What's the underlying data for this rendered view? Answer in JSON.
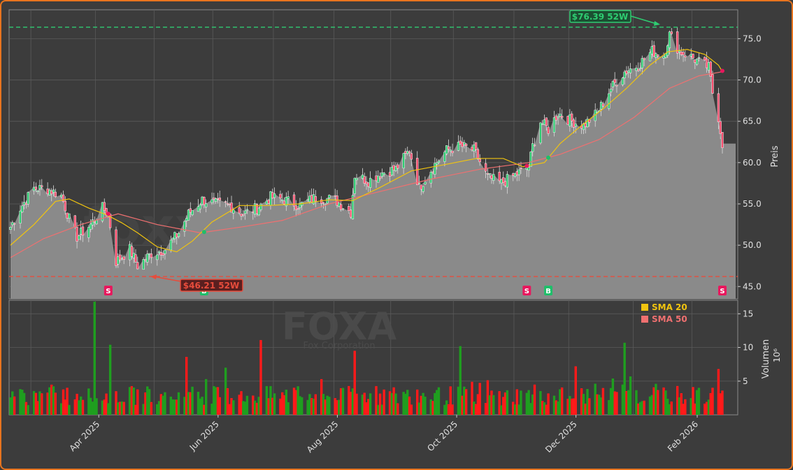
{
  "chart_data": [
    {
      "type": "candlestick",
      "ticker": "FOXA",
      "company": "Fox Corporation",
      "watermark": "foxxsignale.trade",
      "ylabel": "Preis",
      "ylim": [
        43.5,
        78.5
      ],
      "y_ticks": [
        45.0,
        50.0,
        55.0,
        60.0,
        65.0,
        70.0,
        75.0
      ],
      "y_tick_labels": [
        "45.0",
        "50.0",
        "55.0",
        "60.0",
        "65.0",
        "70.0",
        "75.0"
      ],
      "x_ticks": [
        "Apr 2025",
        "Jun 2025",
        "Aug 2025",
        "Oct 2025",
        "Dec 2025",
        "Feb 2026"
      ],
      "x_range": [
        "2025-02-12",
        "2026-02-13"
      ],
      "high_52w": {
        "value": 76.39,
        "label": "$76.39 52W",
        "color": "#2ecc71"
      },
      "low_52w": {
        "value": 46.21,
        "label": "$46.21 52W",
        "color": "#e74c3c"
      },
      "legend": [
        {
          "name": "SMA 20",
          "color": "#f1c40f"
        },
        {
          "name": "SMA 50",
          "color": "#f07070"
        }
      ],
      "price_path": [
        [
          "2025-02-12",
          52.2
        ],
        [
          "2025-02-17",
          54.5
        ],
        [
          "2025-02-24",
          56.9
        ],
        [
          "2025-03-03",
          56.8
        ],
        [
          "2025-03-10",
          56.0
        ],
        [
          "2025-03-14",
          53.2
        ],
        [
          "2025-03-18",
          51.0
        ],
        [
          "2025-03-25",
          52.5
        ],
        [
          "2025-03-31",
          54.5
        ],
        [
          "2025-04-03",
          53.8
        ],
        [
          "2025-04-07",
          48.0
        ],
        [
          "2025-04-14",
          49.5
        ],
        [
          "2025-04-18",
          47.5
        ],
        [
          "2025-04-25",
          49.0
        ],
        [
          "2025-05-02",
          49.5
        ],
        [
          "2025-05-09",
          51.5
        ],
        [
          "2025-05-14",
          53.8
        ],
        [
          "2025-05-21",
          55.5
        ],
        [
          "2025-05-28",
          55.0
        ],
        [
          "2025-06-04",
          54.8
        ],
        [
          "2025-06-11",
          53.8
        ],
        [
          "2025-06-18",
          54.5
        ],
        [
          "2025-06-25",
          55.8
        ],
        [
          "2025-07-02",
          55.5
        ],
        [
          "2025-07-10",
          54.8
        ],
        [
          "2025-07-18",
          55.8
        ],
        [
          "2025-07-28",
          55.5
        ],
        [
          "2025-08-05",
          54.0
        ],
        [
          "2025-08-07",
          58.5
        ],
        [
          "2025-08-14",
          57.8
        ],
        [
          "2025-08-21",
          58.8
        ],
        [
          "2025-08-28",
          59.2
        ],
        [
          "2025-09-04",
          61.5
        ],
        [
          "2025-09-09",
          57.0
        ],
        [
          "2025-09-16",
          59.5
        ],
        [
          "2025-09-23",
          61.5
        ],
        [
          "2025-09-30",
          62.0
        ],
        [
          "2025-10-07",
          61.5
        ],
        [
          "2025-10-14",
          58.2
        ],
        [
          "2025-10-21",
          57.5
        ],
        [
          "2025-10-28",
          58.5
        ],
        [
          "2025-11-04",
          59.5
        ],
        [
          "2025-11-06",
          62.0
        ],
        [
          "2025-11-10",
          65.0
        ],
        [
          "2025-11-14",
          64.0
        ],
        [
          "2025-11-19",
          66.0
        ],
        [
          "2025-11-26",
          65.0
        ],
        [
          "2025-12-02",
          64.5
        ],
        [
          "2025-12-09",
          66.0
        ],
        [
          "2025-12-16",
          69.0
        ],
        [
          "2025-12-23",
          71.0
        ],
        [
          "2025-12-30",
          71.8
        ],
        [
          "2026-01-06",
          73.5
        ],
        [
          "2026-01-12",
          73.0
        ],
        [
          "2026-01-15",
          75.5
        ],
        [
          "2026-01-20",
          73.5
        ],
        [
          "2026-01-26",
          72.8
        ],
        [
          "2026-01-30",
          72.2
        ],
        [
          "2026-02-04",
          71.5
        ],
        [
          "2026-02-06",
          68.5
        ],
        [
          "2026-02-09",
          65.5
        ],
        [
          "2026-02-11",
          62.3
        ]
      ],
      "sma20": [
        [
          "2025-02-12",
          50.0
        ],
        [
          "2025-02-24",
          52.5
        ],
        [
          "2025-03-07",
          55.3
        ],
        [
          "2025-03-14",
          55.6
        ],
        [
          "2025-03-24",
          54.5
        ],
        [
          "2025-04-02",
          53.7
        ],
        [
          "2025-04-10",
          52.7
        ],
        [
          "2025-04-18",
          51.5
        ],
        [
          "2025-04-28",
          49.8
        ],
        [
          "2025-05-08",
          49.2
        ],
        [
          "2025-05-16",
          50.5
        ],
        [
          "2025-05-26",
          52.8
        ],
        [
          "2025-06-09",
          54.8
        ],
        [
          "2025-06-23",
          54.8
        ],
        [
          "2025-07-10",
          55.0
        ],
        [
          "2025-07-25",
          55.5
        ],
        [
          "2025-08-06",
          55.4
        ],
        [
          "2025-08-20",
          57.0
        ],
        [
          "2025-09-05",
          59.0
        ],
        [
          "2025-09-23",
          59.8
        ],
        [
          "2025-10-08",
          60.5
        ],
        [
          "2025-10-22",
          60.5
        ],
        [
          "2025-11-01",
          59.5
        ],
        [
          "2025-11-12",
          60.0
        ],
        [
          "2025-11-20",
          62.3
        ],
        [
          "2025-12-01",
          64.5
        ],
        [
          "2025-12-12",
          66.5
        ],
        [
          "2025-12-24",
          69.0
        ],
        [
          "2026-01-05",
          71.8
        ],
        [
          "2026-01-14",
          73.4
        ],
        [
          "2026-01-24",
          73.7
        ],
        [
          "2026-02-02",
          73.1
        ],
        [
          "2026-02-09",
          71.8
        ],
        [
          "2026-02-11",
          71.0
        ]
      ],
      "sma50": [
        [
          "2025-02-12",
          48.5
        ],
        [
          "2025-03-01",
          50.8
        ],
        [
          "2025-03-20",
          52.5
        ],
        [
          "2025-04-08",
          53.8
        ],
        [
          "2025-04-28",
          52.5
        ],
        [
          "2025-05-20",
          51.5
        ],
        [
          "2025-06-10",
          52.2
        ],
        [
          "2025-07-01",
          53.0
        ],
        [
          "2025-07-25",
          55.0
        ],
        [
          "2025-08-20",
          56.5
        ],
        [
          "2025-09-15",
          58.0
        ],
        [
          "2025-10-10",
          59.2
        ],
        [
          "2025-11-04",
          60.0
        ],
        [
          "2025-11-20",
          61.0
        ],
        [
          "2025-12-10",
          62.8
        ],
        [
          "2025-12-28",
          65.5
        ],
        [
          "2026-01-15",
          69.0
        ],
        [
          "2026-01-30",
          70.5
        ],
        [
          "2026-02-11",
          71.0
        ]
      ],
      "signals": [
        {
          "date": "2025-04-03",
          "type": "S",
          "value": 53.8,
          "color": "#e8175d"
        },
        {
          "date": "2025-05-22",
          "type": "B",
          "value": 51.6,
          "color": "#1fbf6a"
        },
        {
          "date": "2025-11-03",
          "type": "S",
          "value": 59.6,
          "color": "#e8175d"
        },
        {
          "date": "2025-11-14",
          "type": "B",
          "value": 60.6,
          "color": "#1fbf6a"
        },
        {
          "date": "2026-02-11",
          "type": "S",
          "value": 71.1,
          "color": "#e8175d"
        }
      ]
    },
    {
      "type": "bar",
      "ylabel": "Volumen",
      "yunit": "10⁶",
      "ylim": [
        0,
        17
      ],
      "y_ticks": [
        5,
        10,
        15
      ],
      "y_tick_labels": [
        "5",
        "10",
        "15"
      ],
      "spikes": [
        {
          "date": "2025-03-27",
          "value": 16.8,
          "color": "#1f9e1f"
        },
        {
          "date": "2025-04-04",
          "value": 10.4,
          "color": "#1f9e1f"
        },
        {
          "date": "2025-05-13",
          "value": 8.6,
          "color": "#ff1a1a"
        },
        {
          "date": "2025-06-02",
          "value": 7.0,
          "color": "#1f9e1f"
        },
        {
          "date": "2025-06-20",
          "value": 11.1,
          "color": "#ff1a1a"
        },
        {
          "date": "2025-08-07",
          "value": 9.5,
          "color": "#ff1a1a"
        },
        {
          "date": "2025-09-30",
          "value": 10.2,
          "color": "#1f9e1f"
        },
        {
          "date": "2025-11-28",
          "value": 7.2,
          "color": "#ff1a1a"
        },
        {
          "date": "2025-12-23",
          "value": 10.7,
          "color": "#1f9e1f"
        },
        {
          "date": "2026-02-09",
          "value": 6.8,
          "color": "#ff1a1a"
        }
      ],
      "up_color": "#1f9e1f",
      "down_color": "#ff1a1a"
    }
  ]
}
